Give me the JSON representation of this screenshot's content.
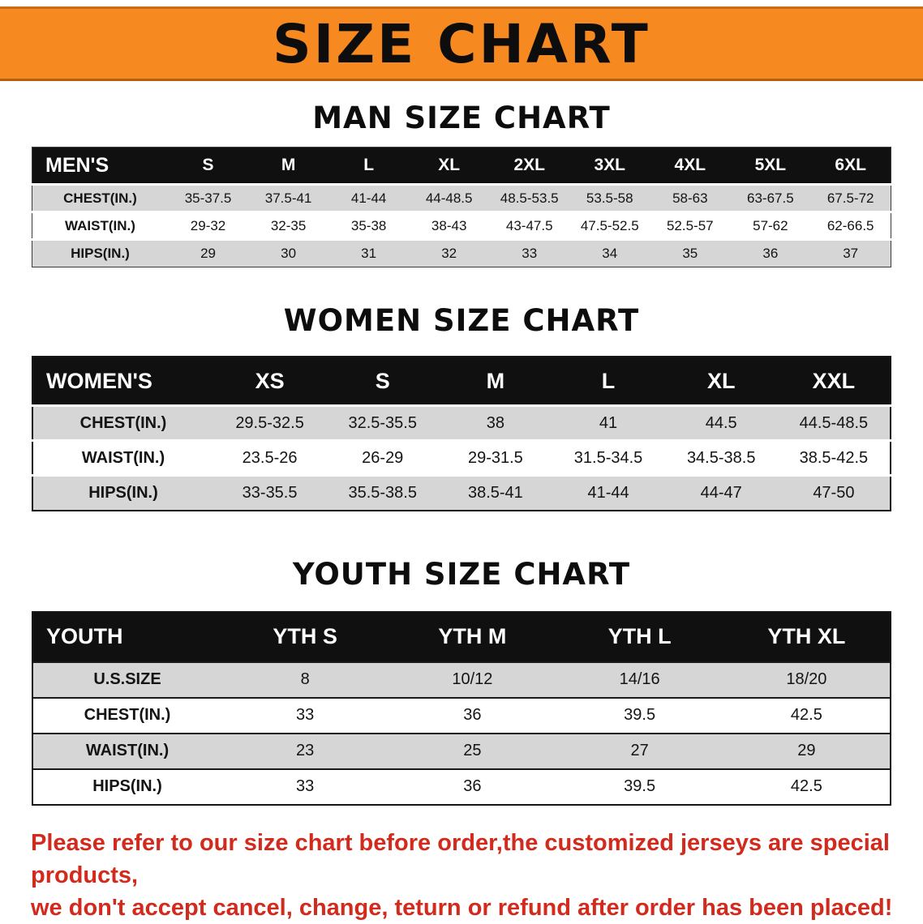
{
  "colors": {
    "banner_bg": "#f6891f",
    "banner_border": "#c96d12",
    "table_header_bg": "#101010",
    "row_alt_bg": "#d6d6d6",
    "disclaimer_text": "#d22a1c"
  },
  "banner": {
    "title": "SIZE CHART"
  },
  "sections": [
    {
      "heading": "MAN SIZE CHART",
      "table": {
        "header": [
          "MEN'S",
          "S",
          "M",
          "L",
          "XL",
          "2XL",
          "3XL",
          "4XL",
          "5XL",
          "6XL"
        ],
        "rows": [
          [
            "CHEST(IN.)",
            "35-37.5",
            "37.5-41",
            "41-44",
            "44-48.5",
            "48.5-53.5",
            "53.5-58",
            "58-63",
            "63-67.5",
            "67.5-72"
          ],
          [
            "WAIST(IN.)",
            "29-32",
            "32-35",
            "35-38",
            "38-43",
            "43-47.5",
            "47.5-52.5",
            "52.5-57",
            "57-62",
            "62-66.5"
          ],
          [
            "HIPS(IN.)",
            "29",
            "30",
            "31",
            "32",
            "33",
            "34",
            "35",
            "36",
            "37"
          ]
        ]
      }
    },
    {
      "heading": "WOMEN SIZE CHART",
      "table": {
        "header": [
          "WOMEN'S",
          "XS",
          "S",
          "M",
          "L",
          "XL",
          "XXL"
        ],
        "rows": [
          [
            "CHEST(IN.)",
            "29.5-32.5",
            "32.5-35.5",
            "38",
            "41",
            "44.5",
            "44.5-48.5"
          ],
          [
            "WAIST(IN.)",
            "23.5-26",
            "26-29",
            "29-31.5",
            "31.5-34.5",
            "34.5-38.5",
            "38.5-42.5"
          ],
          [
            "HIPS(IN.)",
            "33-35.5",
            "35.5-38.5",
            "38.5-41",
            "41-44",
            "44-47",
            "47-50"
          ]
        ]
      }
    },
    {
      "heading": "YOUTH SIZE CHART",
      "table": {
        "header": [
          "YOUTH",
          "YTH S",
          "YTH M",
          "YTH L",
          "YTH XL"
        ],
        "rows": [
          [
            "U.S.SIZE",
            "8",
            "10/12",
            "14/16",
            "18/20"
          ],
          [
            "CHEST(IN.)",
            "33",
            "36",
            "39.5",
            "42.5"
          ],
          [
            "WAIST(IN.)",
            "23",
            "25",
            "27",
            "29"
          ],
          [
            "HIPS(IN.)",
            "33",
            "36",
            "39.5",
            "42.5"
          ]
        ]
      }
    }
  ],
  "disclaimer": {
    "lines": [
      "Please refer to our size chart before order,the customized jerseys are special products,",
      "we don't accept cancel, change, teturn or refund after order has been placed!"
    ]
  }
}
